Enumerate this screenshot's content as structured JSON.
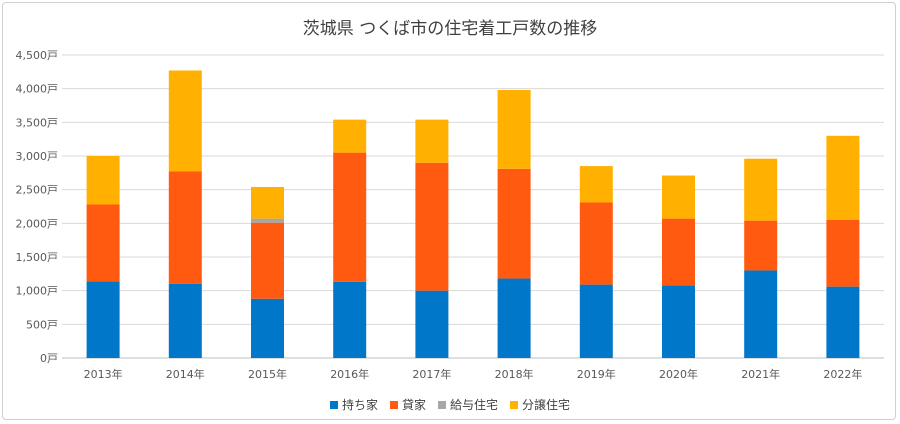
{
  "chart_data": {
    "type": "stacked_bar",
    "title": "茨城県 つくば市の住宅着工戸数の推移",
    "categories": [
      "2013年",
      "2014年",
      "2015年",
      "2016年",
      "2017年",
      "2018年",
      "2019年",
      "2020年",
      "2021年",
      "2022年"
    ],
    "series": [
      {
        "name": "持ち家",
        "color": "#0077c8",
        "values": [
          1140,
          1100,
          880,
          1130,
          1000,
          1180,
          1090,
          1080,
          1300,
          1060
        ]
      },
      {
        "name": "貸家",
        "color": "#ff5a0f",
        "values": [
          1140,
          1670,
          1130,
          1920,
          1900,
          1630,
          1220,
          990,
          740,
          990
        ]
      },
      {
        "name": "給与住宅",
        "color": "#a6a6a6",
        "values": [
          0,
          0,
          60,
          0,
          0,
          0,
          0,
          0,
          0,
          0
        ]
      },
      {
        "name": "分譲住宅",
        "color": "#ffb000",
        "values": [
          720,
          1500,
          470,
          490,
          640,
          1170,
          540,
          640,
          920,
          1250
        ]
      }
    ],
    "ylim": [
      0,
      4500
    ],
    "yticks": [
      0,
      500,
      1000,
      1500,
      2000,
      2500,
      3000,
      3500,
      4000,
      4500
    ],
    "ytick_labels": [
      "0戸",
      "500戸",
      "1,000戸",
      "1,500戸",
      "2,000戸",
      "2,500戸",
      "3,000戸",
      "3,500戸",
      "4,000戸",
      "4,500戸"
    ],
    "grid": true,
    "legend_position": "bottom"
  }
}
